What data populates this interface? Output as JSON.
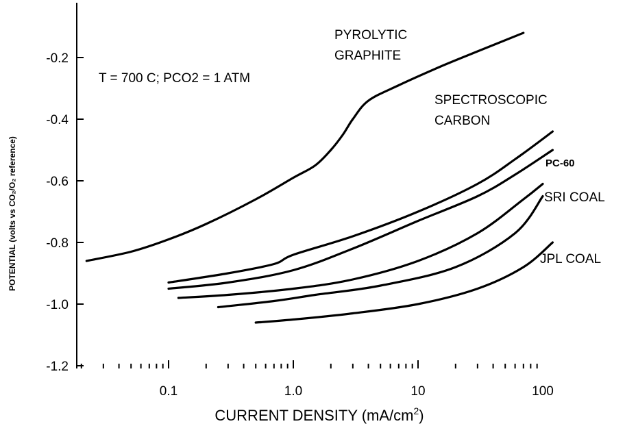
{
  "chart_data": {
    "type": "line",
    "x_scale": "log",
    "annotation": "T = 700 C; PCO2 = 1 ATM",
    "xlabel": "CURRENT DENSITY (mA/cm²)",
    "xlabel_main": "CURRENT DENSITY (mA/cm",
    "xlabel_sup": "2",
    "xlabel_close": ")",
    "ylabel": "POTENTIAL (volts vs CO₂/O₂ reference)",
    "xlim": [
      0.02,
      120
    ],
    "ylim": [
      -1.2,
      -0.15
    ],
    "x_ticks": [
      {
        "value": 0.1,
        "label": "0.1"
      },
      {
        "value": 1.0,
        "label": "1.0"
      },
      {
        "value": 10,
        "label": "10"
      },
      {
        "value": 100,
        "label": "100"
      }
    ],
    "y_ticks": [
      {
        "value": -0.2,
        "label": "-0.2"
      },
      {
        "value": -0.4,
        "label": "-0.4"
      },
      {
        "value": -0.6,
        "label": "-0.6"
      },
      {
        "value": -0.8,
        "label": "-0.8"
      },
      {
        "value": -1.0,
        "label": "-1.0"
      },
      {
        "value": -1.2,
        "label": "-1.2"
      }
    ],
    "series": [
      {
        "name": "PYROLYTIC GRAPHITE",
        "label_lines": [
          "PYROLYTIC",
          "GRAPHITE"
        ],
        "x": [
          0.022,
          0.05,
          0.1,
          0.2,
          0.5,
          1.0,
          1.5,
          2.0,
          2.5,
          3.0,
          4.0,
          7.0,
          15,
          30,
          70
        ],
        "y": [
          -0.86,
          -0.83,
          -0.79,
          -0.74,
          -0.66,
          -0.59,
          -0.55,
          -0.5,
          -0.45,
          -0.4,
          -0.34,
          -0.29,
          -0.23,
          -0.18,
          -0.12
        ]
      },
      {
        "name": "SPECTROSCOPIC CARBON",
        "label_lines": [
          "SPECTROSCOPIC",
          "CARBON"
        ],
        "x": [
          0.1,
          0.3,
          0.7,
          1.0,
          3.0,
          10,
          30,
          60,
          120
        ],
        "y": [
          -0.93,
          -0.9,
          -0.87,
          -0.84,
          -0.78,
          -0.7,
          -0.61,
          -0.53,
          -0.44
        ]
      },
      {
        "name": "PC-60",
        "label_lines": [
          "PC-60"
        ],
        "x": [
          0.1,
          0.3,
          1.0,
          3.0,
          10,
          30,
          60,
          120
        ],
        "y": [
          -0.95,
          -0.93,
          -0.89,
          -0.82,
          -0.73,
          -0.65,
          -0.58,
          -0.5
        ]
      },
      {
        "name": "SRI COAL",
        "label_lines": [
          "SRI COAL"
        ],
        "x": [
          0.12,
          0.3,
          1.0,
          3.0,
          10,
          30,
          70,
          100
        ],
        "y": [
          -0.98,
          -0.97,
          -0.95,
          -0.92,
          -0.86,
          -0.77,
          -0.66,
          -0.61
        ]
      },
      {
        "name": "JPL COAL",
        "label_lines": [
          "JPL COAL"
        ],
        "x": [
          0.5,
          1.0,
          3.0,
          10,
          30,
          70,
          120
        ],
        "y": [
          -1.06,
          -1.05,
          -1.03,
          -1.0,
          -0.95,
          -0.88,
          -0.8
        ]
      },
      {
        "name": "",
        "label_lines": [],
        "x": [
          0.25,
          0.7,
          1.5,
          5.0,
          20,
          60,
          100
        ],
        "y": [
          -1.01,
          -0.99,
          -0.97,
          -0.94,
          -0.88,
          -0.77,
          -0.65
        ]
      }
    ]
  }
}
